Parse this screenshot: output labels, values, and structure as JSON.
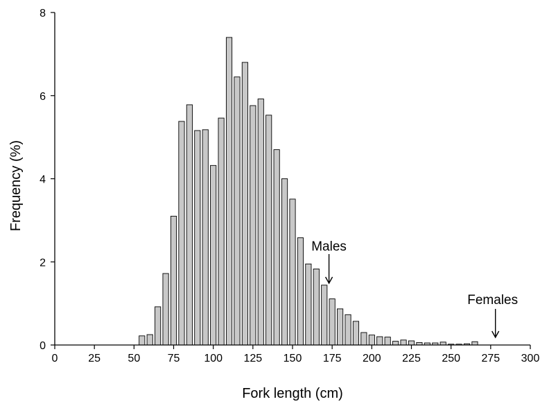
{
  "chart_data": {
    "type": "bar",
    "xlabel": "Fork length (cm)",
    "ylabel": "Frequency (%)",
    "xlim": [
      0,
      300
    ],
    "ylim": [
      0,
      8
    ],
    "x_ticks": [
      "0",
      "25",
      "50",
      "75",
      "100",
      "125",
      "150",
      "175",
      "200",
      "225",
      "250",
      "275",
      "300"
    ],
    "y_ticks": [
      "0",
      "2",
      "4",
      "6",
      "8"
    ],
    "grid": false,
    "bin_width": 5,
    "x": [
      55,
      60,
      65,
      70,
      75,
      80,
      85,
      90,
      95,
      100,
      105,
      110,
      115,
      120,
      125,
      130,
      135,
      140,
      145,
      150,
      155,
      160,
      165,
      170,
      175,
      180,
      185,
      190,
      195,
      200,
      205,
      210,
      215,
      220,
      225,
      230,
      235,
      240,
      245,
      250,
      255,
      260,
      265
    ],
    "values": [
      0.22,
      0.25,
      0.92,
      1.72,
      3.1,
      5.38,
      5.78,
      5.16,
      5.18,
      4.32,
      5.46,
      7.4,
      6.45,
      6.8,
      5.76,
      5.92,
      5.53,
      4.7,
      4.0,
      3.51,
      2.58,
      1.95,
      1.83,
      1.44,
      1.11,
      0.87,
      0.73,
      0.57,
      0.3,
      0.24,
      0.2,
      0.19,
      0.09,
      0.12,
      0.1,
      0.06,
      0.05,
      0.05,
      0.07,
      0.02,
      0.02,
      0.03,
      0.08
    ],
    "annotations": [
      {
        "label": "Males",
        "x": 173
      },
      {
        "label": "Females",
        "x": 278
      }
    ]
  }
}
